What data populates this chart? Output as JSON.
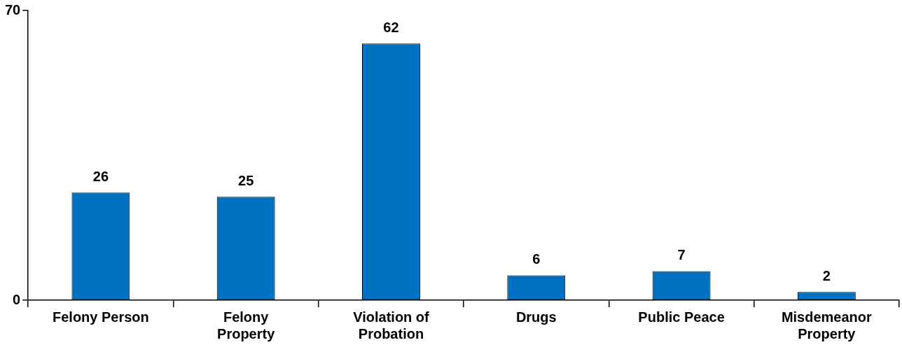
{
  "chart_data": {
    "type": "bar",
    "categories": [
      "Felony Person",
      "Felony Property",
      "Violation of Probation",
      "Drugs",
      "Public Peace",
      "Misdemeanor Property"
    ],
    "values": [
      26,
      25,
      62,
      6,
      7,
      2
    ],
    "color": "#0070c0",
    "ylim": [
      0,
      70
    ],
    "yticks": [
      0,
      70
    ],
    "grid": false,
    "legend": false,
    "data_labels": true
  }
}
